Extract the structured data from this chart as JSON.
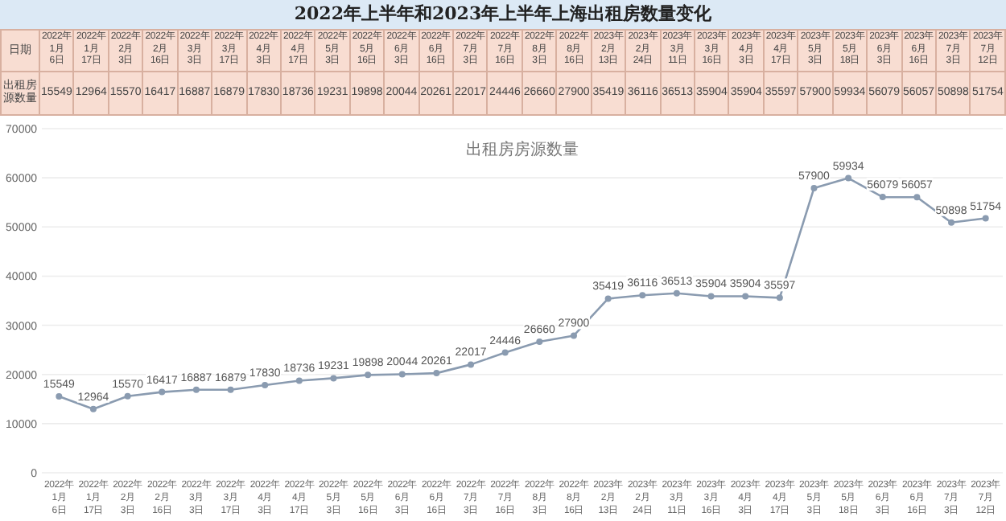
{
  "chart_data": {
    "type": "line",
    "title": "2022年上半年和2023年上半年上海出租房数量变化",
    "subtitle": "出租房房源数量",
    "annotations": [
      "日期",
      "出租房源数量",
      "15549",
      "12964",
      "15570",
      "16417",
      "16887",
      "16879",
      "17830",
      "18736",
      "19231",
      "19898",
      "20044",
      "20261",
      "22017",
      "24446",
      "26660",
      "27900",
      "35419",
      "36116",
      "36513",
      "35904",
      "35904",
      "35597",
      "57900",
      "59934",
      "56079",
      "56057",
      "50898",
      "51754"
    ],
    "categories": [
      "2022年1月6日",
      "2022年1月17日",
      "2022年2月3日",
      "2022年2月16日",
      "2022年3月3日",
      "2022年3月17日",
      "2022年4月3日",
      "2022年4月17日",
      "2022年5月3日",
      "2022年5月16日",
      "2022年6月3日",
      "2022年6月16日",
      "2022年7月3日",
      "2022年7月16日",
      "2022年8月3日",
      "2022年8月16日",
      "2023年2月13日",
      "2023年2月24日",
      "2023年3月11日",
      "2023年3月16日",
      "2023年4月3日",
      "2023年4月17日",
      "2023年5月3日",
      "2023年5月18日",
      "2023年6月3日",
      "2023年6月16日",
      "2023年7月3日",
      "2023年7月12日"
    ],
    "series": [
      {
        "color": "#8a9bb0",
        "values": [
          15549,
          12964,
          15570,
          16417,
          16887,
          16879,
          17830,
          18736,
          19231,
          19898,
          20044,
          20261,
          22017,
          24446,
          26660,
          27900,
          35419,
          36116,
          36513,
          35904,
          35904,
          35597,
          57900,
          59934,
          56079,
          56057,
          50898,
          51754
        ]
      }
    ],
    "ylim": [
      0,
      70000
    ],
    "yticks": [
      0,
      10000,
      20000,
      30000,
      40000,
      50000,
      60000,
      70000
    ],
    "grid": "y",
    "marker": "circle",
    "data_labels": true
  }
}
